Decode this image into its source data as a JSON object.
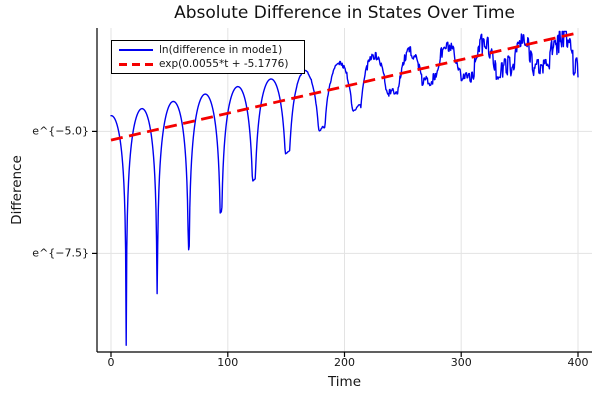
{
  "chart_data": {
    "type": "line",
    "title": "Absolute Difference in States Over Time",
    "xlabel": "Time",
    "ylabel": "Difference",
    "x_ticks": [
      "0",
      "100",
      "200",
      "300",
      "400"
    ],
    "x_tick_values": [
      0,
      100,
      200,
      300,
      400
    ],
    "y_ticks": [
      {
        "label": "e^{−5.0}",
        "ln": -5.0
      },
      {
        "label": "e^{−7.5}",
        "ln": -7.5
      }
    ],
    "xlim": [
      -12,
      412
    ],
    "ylim_ln": [
      -9.52,
      -2.88
    ],
    "grid": true,
    "legend_position": "top-left",
    "colors": {
      "grid": "#e3e3e3",
      "axis": "#000000",
      "text": "#151515"
    },
    "beat_minima_t": [
      13,
      39,
      66,
      95,
      124,
      153,
      183,
      213,
      243,
      273,
      302,
      331,
      360,
      389
    ],
    "series": [
      {
        "name": "ln(difference in mode1)",
        "color": "#0000f0",
        "style": "solid",
        "line_width": 1.4,
        "model": {
          "form": "ln_y(t) = fit(t) + peak_offset(t) + max(ln|sin(phase(t))|, -dip_depth(t)) + noise(t)",
          "t_start": 0,
          "t_end": 400,
          "dt": 0.5,
          "first_dip_t": 13,
          "period_at_first_dip": 26.26,
          "period_growth": 0.02,
          "peak_offset": 0.5,
          "peak_offset_end": -0.05,
          "peak_offset_fade_start": 220,
          "peak_offset_fade_end": 400,
          "dip_depth_max": 5.3,
          "dip_depth_tau": 125,
          "dip_depth_min": 0.55,
          "noise_start_t": 140,
          "noise_amp_max": 0.28,
          "noise2_start_t": 230,
          "noise2_amp": 0.14,
          "ln_max": -2.95
        }
      },
      {
        "name": "exp(0.0055*t + -5.1776)",
        "color": "#f40000",
        "style": "dashed",
        "line_width": 2.8,
        "fit": {
          "slope": 0.0055,
          "intercept": -5.1776,
          "t_start": 0,
          "t_end": 400
        }
      }
    ]
  }
}
